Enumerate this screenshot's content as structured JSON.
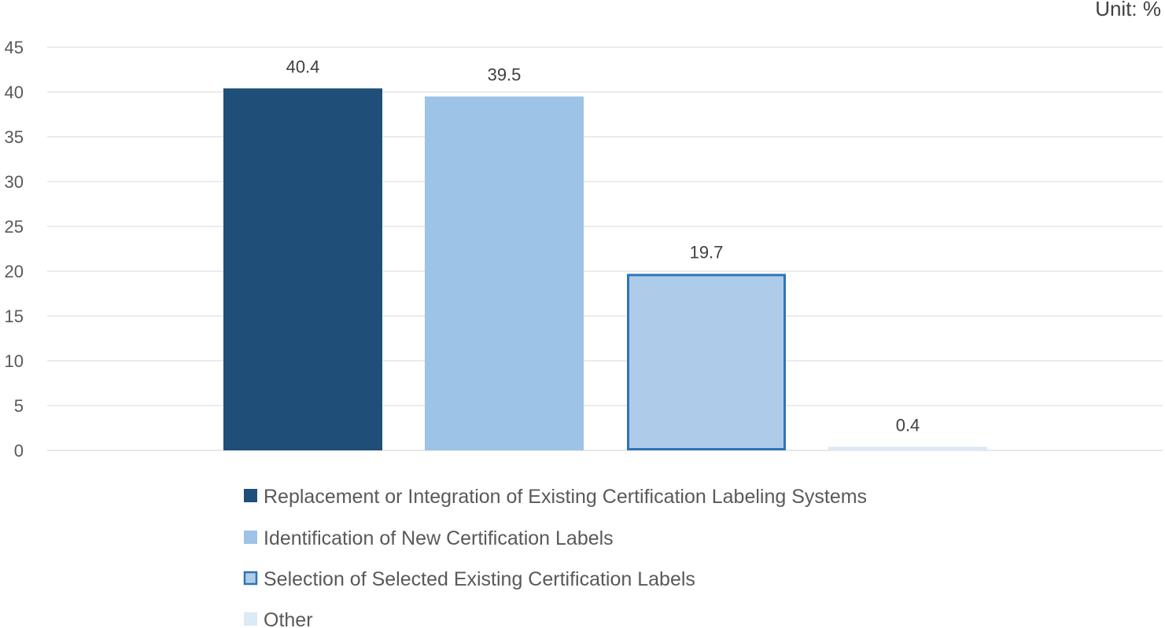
{
  "chart_data": {
    "type": "bar",
    "unit_label": "Unit: %",
    "ylim": [
      0,
      45
    ],
    "y_ticks": [
      0,
      5,
      10,
      15,
      20,
      25,
      30,
      35,
      40,
      45
    ],
    "grid": true,
    "legend_position": "bottom",
    "bars": [
      {
        "name": "Replacement or Integration of Existing Certification Labeling Systems",
        "value": 40.4,
        "label": "40.4",
        "color": "#1f4e79",
        "outline": false
      },
      {
        "name": "Identification of New Certification Labels",
        "value": 39.5,
        "label": "39.5",
        "color": "#9dc3e6",
        "outline": false
      },
      {
        "name": "Selection of Selected Existing Certification Labels",
        "value": 19.7,
        "label": "19.7",
        "color": "#aecce9",
        "outline": true,
        "outline_color": "#2e75b6"
      },
      {
        "name": "Other",
        "value": 0.4,
        "label": "0.4",
        "color": "#dce9f6",
        "outline": false
      }
    ]
  }
}
